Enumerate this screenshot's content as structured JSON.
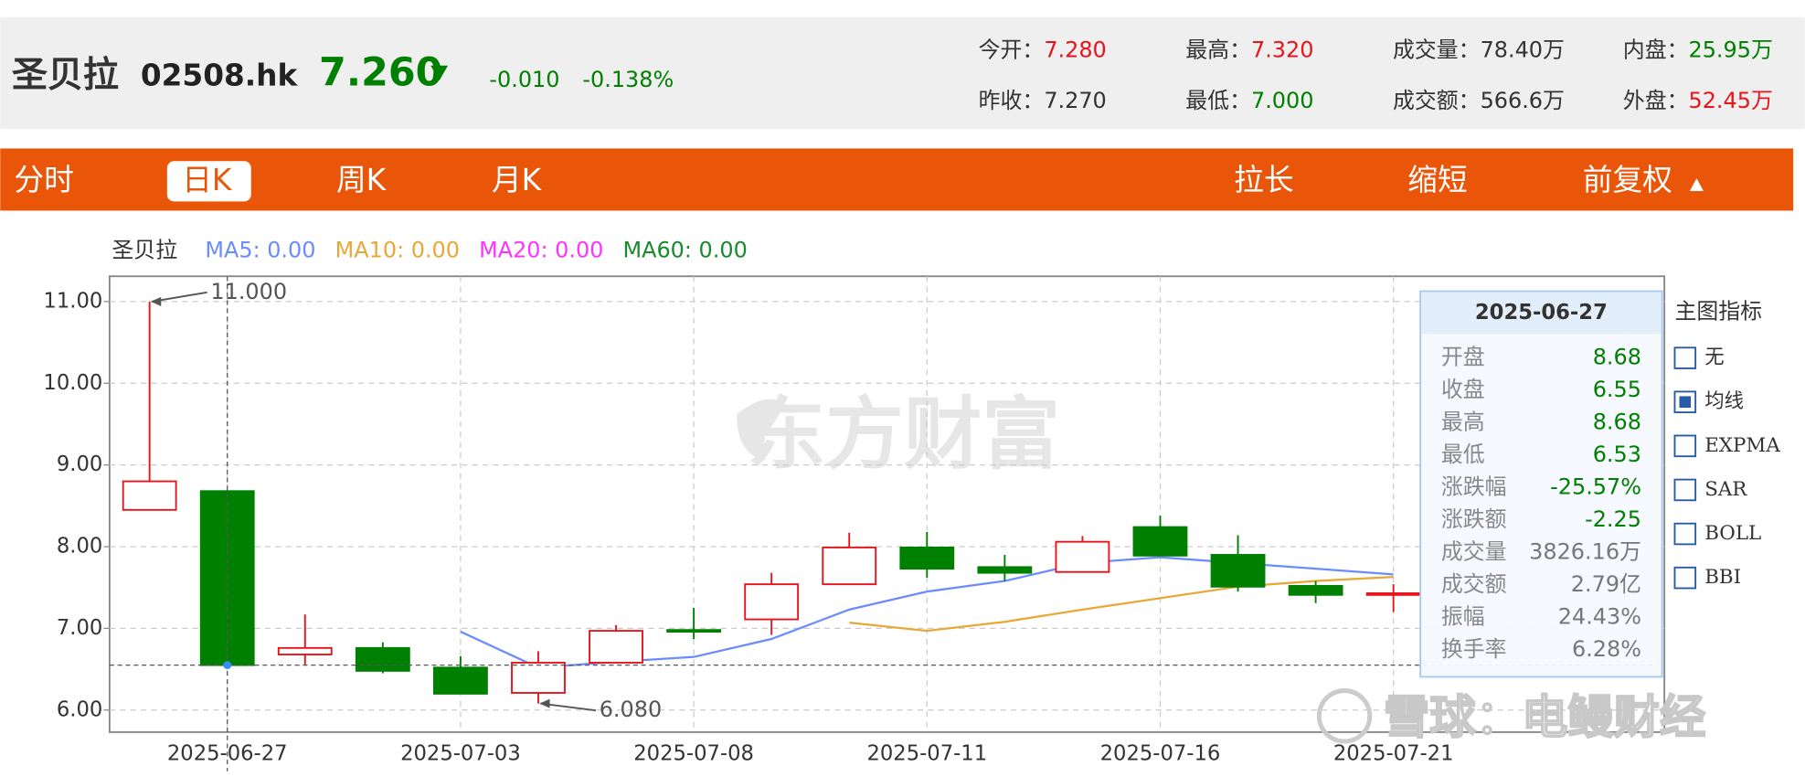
{
  "header": {
    "name": "圣贝拉",
    "code": "02508.hk",
    "price": "7.260",
    "change": "-0.010",
    "change_pct": "-0.138%",
    "stats": [
      [
        {
          "label": "今开：",
          "value": "7.280",
          "color": "#e8141b"
        },
        {
          "label": "昨收：",
          "value": "7.270",
          "color": "#333333"
        }
      ],
      [
        {
          "label": "最高：",
          "value": "7.320",
          "color": "#e8141b"
        },
        {
          "label": "最低：",
          "value": "7.000",
          "color": "#008000"
        }
      ],
      [
        {
          "label": "成交量：",
          "value": "78.40万",
          "color": "#333333"
        },
        {
          "label": "成交额：",
          "value": "566.6万",
          "color": "#333333"
        }
      ],
      [
        {
          "label": "内盘：",
          "value": "25.95万",
          "color": "#008000"
        },
        {
          "label": "外盘：",
          "value": "52.45万",
          "color": "#e8141b"
        }
      ]
    ]
  },
  "tabs": {
    "left": [
      "分时",
      "日K",
      "周K",
      "月K"
    ],
    "selected": "日K",
    "right": [
      "拉长",
      "缩短",
      "前复权"
    ]
  },
  "legend_title": "圣贝拉",
  "chart_data": {
    "type": "candlestick",
    "categories": [
      null,
      "2025-06-27",
      null,
      null,
      "2025-07-03",
      null,
      null,
      "2025-07-08",
      null,
      null,
      "2025-07-11",
      null,
      null,
      "2025-07-16",
      null,
      null,
      "2025-07-21"
    ],
    "open": [
      8.45,
      8.68,
      6.68,
      6.76,
      6.52,
      6.21,
      6.58,
      6.98,
      7.11,
      7.54,
      7.99,
      7.75,
      7.69,
      8.24,
      7.9,
      7.52,
      7.42
    ],
    "high": [
      11.0,
      8.68,
      7.17,
      6.83,
      6.66,
      6.72,
      7.04,
      7.25,
      7.68,
      8.17,
      8.18,
      7.9,
      8.13,
      8.38,
      8.14,
      7.58,
      7.54
    ],
    "low": [
      8.45,
      6.53,
      6.55,
      6.45,
      6.2,
      6.08,
      6.58,
      6.87,
      6.92,
      7.54,
      7.62,
      7.58,
      7.69,
      7.89,
      7.45,
      7.31,
      7.2
    ],
    "close": [
      8.8,
      6.55,
      6.76,
      6.48,
      6.2,
      6.58,
      6.97,
      6.97,
      7.54,
      7.99,
      7.73,
      7.68,
      8.06,
      7.89,
      7.51,
      7.41,
      7.43
    ],
    "up_color": "#e8141b",
    "down_color": "#008000",
    "lines": [
      {
        "name": "MA5: 0.00",
        "color": "#6b8cff",
        "values": [
          null,
          null,
          null,
          null,
          6.96,
          6.52,
          6.59,
          6.65,
          6.87,
          7.23,
          7.45,
          7.58,
          7.8,
          7.87,
          7.8,
          7.73,
          7.66
        ]
      },
      {
        "name": "MA10: 0.00",
        "color": "#e8a838",
        "values": [
          null,
          null,
          null,
          null,
          null,
          null,
          null,
          null,
          null,
          7.07,
          6.97,
          7.08,
          7.23,
          7.37,
          7.51,
          7.58,
          7.63
        ]
      },
      {
        "name": "MA20: 0.00",
        "color": "#ff33ff",
        "values": [
          null,
          null,
          null,
          null,
          null,
          null,
          null,
          null,
          null,
          null,
          null,
          null,
          null,
          null,
          null,
          null,
          null
        ]
      },
      {
        "name": "MA60: 0.00",
        "color": "#1a8a2a",
        "values": [
          null,
          null,
          null,
          null,
          null,
          null,
          null,
          null,
          null,
          null,
          null,
          null,
          null,
          null,
          null,
          null,
          null
        ]
      }
    ],
    "ylim": [
      5.73,
      11.31
    ],
    "yticks": [
      {
        "value": 6,
        "label": "6.00"
      },
      {
        "value": 7,
        "label": "7.00"
      },
      {
        "value": 8,
        "label": "8.00"
      },
      {
        "value": 9,
        "label": "9.00"
      },
      {
        "value": 10,
        "label": "10.00"
      },
      {
        "value": 11,
        "label": "11.00"
      }
    ],
    "grid": true,
    "annotations": [
      {
        "value": 11,
        "label": "11.000"
      },
      {
        "value": 6.08,
        "label": "6.080"
      }
    ]
  },
  "tooltip": {
    "title": "2025-06-27",
    "rows": [
      {
        "label": "开盘",
        "value": "8.68",
        "color": "#008000"
      },
      {
        "label": "收盘",
        "value": "6.55",
        "color": "#008000"
      },
      {
        "label": "最高",
        "value": "8.68",
        "color": "#008000"
      },
      {
        "label": "最低",
        "value": "6.53",
        "color": "#008000"
      },
      {
        "label": "涨跌幅",
        "value": "-25.57%",
        "color": "#008000"
      },
      {
        "label": "涨跌额",
        "value": "-2.25",
        "color": "#008000"
      },
      {
        "label": "成交量",
        "value": "3826.16万",
        "color": "#777777"
      },
      {
        "label": "成交额",
        "value": "2.79亿",
        "color": "#777777"
      },
      {
        "label": "振幅",
        "value": "24.43%",
        "color": "#777777"
      },
      {
        "label": "换手率",
        "value": "6.28%",
        "color": "#777777"
      }
    ]
  },
  "indicator_panel": {
    "title": "主图指标",
    "options": [
      {
        "label": "无",
        "checked": false
      },
      {
        "label": "均线",
        "checked": true
      },
      {
        "label": "EXPMA",
        "checked": false
      },
      {
        "label": "SAR",
        "checked": false
      },
      {
        "label": "BOLL",
        "checked": false
      },
      {
        "label": "BBI",
        "checked": false
      }
    ]
  },
  "watermarks": {
    "center": "东方财富",
    "corner": "雪球：电鳗财经"
  }
}
